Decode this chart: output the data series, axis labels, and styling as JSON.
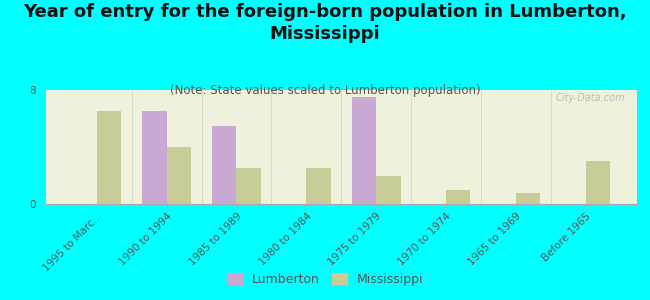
{
  "title": "Year of entry for the foreign-born population in Lumberton,\nMississippi",
  "subtitle": "(Note: State values scaled to Lumberton population)",
  "categories": [
    "1995 to Marc...",
    "1990 to 1994",
    "1985 to 1989",
    "1980 to 1984",
    "1975 to 1979",
    "1970 to 1974",
    "1965 to 1969",
    "Before 1965"
  ],
  "lumberton": [
    0,
    6.5,
    5.5,
    0,
    7.5,
    0,
    0,
    0
  ],
  "mississippi": [
    6.5,
    4.0,
    2.5,
    2.5,
    2.0,
    1.0,
    0.8,
    3.0
  ],
  "lumberton_color": "#c9a8d4",
  "mississippi_color": "#c8cc99",
  "background_color": "#00ffff",
  "plot_bg": "#eef2dc",
  "ylim": [
    0,
    8
  ],
  "yticks": [
    0,
    8
  ],
  "bar_width": 0.35,
  "title_fontsize": 13,
  "subtitle_fontsize": 8.5,
  "tick_fontsize": 7.5,
  "watermark": "City-Data.com",
  "legend_lumberton": "Lumberton",
  "legend_mississippi": "Mississippi"
}
